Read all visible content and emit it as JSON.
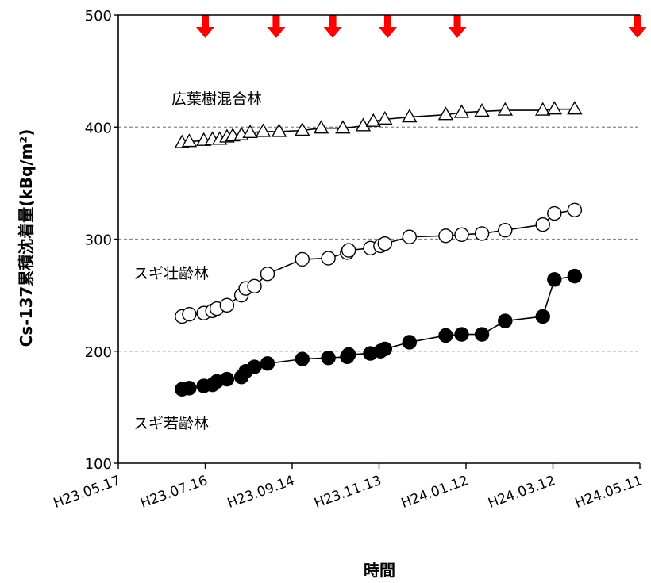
{
  "chart_data": {
    "type": "line",
    "xlabel": "時間",
    "ylabel": "Cs-137累積沈着量(kBq/m²)",
    "ylim": [
      100,
      500
    ],
    "yticks": [
      "100",
      "200",
      "300",
      "400",
      "500"
    ],
    "xlim": [
      "2011-05-17",
      "2012-05-11"
    ],
    "xticks": [
      "H23.05.17",
      "H23.07.16",
      "H23.09.14",
      "H23.11.13",
      "H24.01.12",
      "H24.03.12",
      "H24.05.11"
    ],
    "grid": "horizontal dashed",
    "arrow_color": "#ff0000",
    "arrow_dates": [
      "2011-07-16",
      "2011-09-03",
      "2011-10-12",
      "2011-11-19",
      "2012-01-06",
      "2012-05-11"
    ],
    "series": [
      {
        "name": "広葉樹混合林",
        "marker": "triangle-open",
        "x": [
          "2011-06-30",
          "2011-07-05",
          "2011-07-15",
          "2011-07-21",
          "2011-07-26",
          "2011-07-31",
          "2011-08-04",
          "2011-08-10",
          "2011-08-16",
          "2011-08-25",
          "2011-09-05",
          "2011-09-21",
          "2011-10-04",
          "2011-10-19",
          "2011-11-02",
          "2011-11-09",
          "2011-11-17",
          "2011-12-04",
          "2011-12-29",
          "2012-01-09",
          "2012-01-23",
          "2012-02-08",
          "2012-03-05",
          "2012-03-13",
          "2012-03-27"
        ],
        "values": [
          386,
          387,
          388,
          389,
          389,
          391,
          392,
          393,
          395,
          396,
          396,
          397,
          399,
          399,
          401,
          405,
          407,
          409,
          411,
          413,
          414,
          415,
          415,
          416,
          416
        ]
      },
      {
        "name": "スギ壮齢林",
        "marker": "circle-open",
        "x": [
          "2011-06-30",
          "2011-07-05",
          "2011-07-15",
          "2011-07-21",
          "2011-07-24",
          "2011-07-31",
          "2011-08-10",
          "2011-08-13",
          "2011-08-19",
          "2011-08-28",
          "2011-09-21",
          "2011-10-09",
          "2011-10-22",
          "2011-10-23",
          "2011-11-07",
          "2011-11-14",
          "2011-11-17",
          "2011-12-04",
          "2011-12-29",
          "2012-01-09",
          "2012-01-23",
          "2012-02-08",
          "2012-03-05",
          "2012-03-13",
          "2012-03-27"
        ],
        "values": [
          231,
          233,
          234,
          236,
          238,
          241,
          250,
          256,
          258,
          269,
          282,
          283,
          288,
          290,
          292,
          294,
          296,
          302,
          303,
          304,
          305,
          308,
          313,
          323,
          326
        ]
      },
      {
        "name": "スギ若齢林",
        "marker": "circle-filled",
        "x": [
          "2011-06-30",
          "2011-07-05",
          "2011-07-15",
          "2011-07-21",
          "2011-07-24",
          "2011-07-31",
          "2011-08-10",
          "2011-08-13",
          "2011-08-19",
          "2011-08-28",
          "2011-09-21",
          "2011-10-09",
          "2011-10-22",
          "2011-10-23",
          "2011-11-07",
          "2011-11-14",
          "2011-11-17",
          "2011-12-04",
          "2011-12-29",
          "2012-01-09",
          "2012-01-23",
          "2012-02-08",
          "2012-03-05",
          "2012-03-13",
          "2012-03-27"
        ],
        "values": [
          166,
          167,
          169,
          170,
          173,
          175,
          177,
          182,
          186,
          189,
          193,
          194,
          195,
          197,
          198,
          200,
          202,
          208,
          214,
          215,
          215,
          227,
          231,
          264,
          267
        ]
      }
    ]
  }
}
